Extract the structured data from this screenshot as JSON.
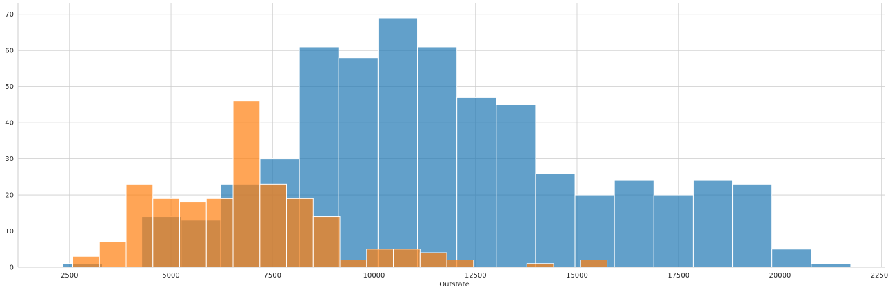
{
  "chart_data": {
    "type": "bar",
    "subtype": "histogram",
    "xlabel": "Outstate",
    "ylabel": "",
    "xlim": [
      1230,
      22590
    ],
    "ylim": [
      0,
      73
    ],
    "grid": true,
    "x_ticks": [
      2500,
      5000,
      7500,
      10000,
      12500,
      15000,
      17500,
      20000,
      22500
    ],
    "y_ticks": [
      0,
      10,
      20,
      30,
      40,
      50,
      60,
      70
    ],
    "series": [
      {
        "color": "#1f77b4",
        "opacity": 0.7,
        "bin_edges": [
          2340,
          3310,
          4280,
          5250,
          6220,
          7190,
          8160,
          9130,
          10100,
          11070,
          12040,
          13010,
          13980,
          14950,
          15920,
          16890,
          17860,
          18830,
          19800,
          20770,
          21740
        ],
        "values": [
          1,
          0,
          14,
          13,
          23,
          30,
          61,
          58,
          69,
          61,
          47,
          45,
          26,
          20,
          24,
          20,
          24,
          23,
          5,
          1
        ]
      },
      {
        "color": "#ff7f0e",
        "opacity": 0.7,
        "bin_edges": [
          2580,
          3238,
          3896,
          4554,
          5212,
          5870,
          6528,
          7186,
          7844,
          8502,
          9160,
          9818,
          10476,
          11134,
          11792,
          12450,
          13108,
          13766,
          14424,
          15082,
          15740
        ],
        "values": [
          3,
          7,
          23,
          19,
          18,
          19,
          46,
          23,
          19,
          14,
          2,
          5,
          5,
          4,
          2,
          0,
          0,
          1,
          0,
          2
        ]
      }
    ]
  }
}
